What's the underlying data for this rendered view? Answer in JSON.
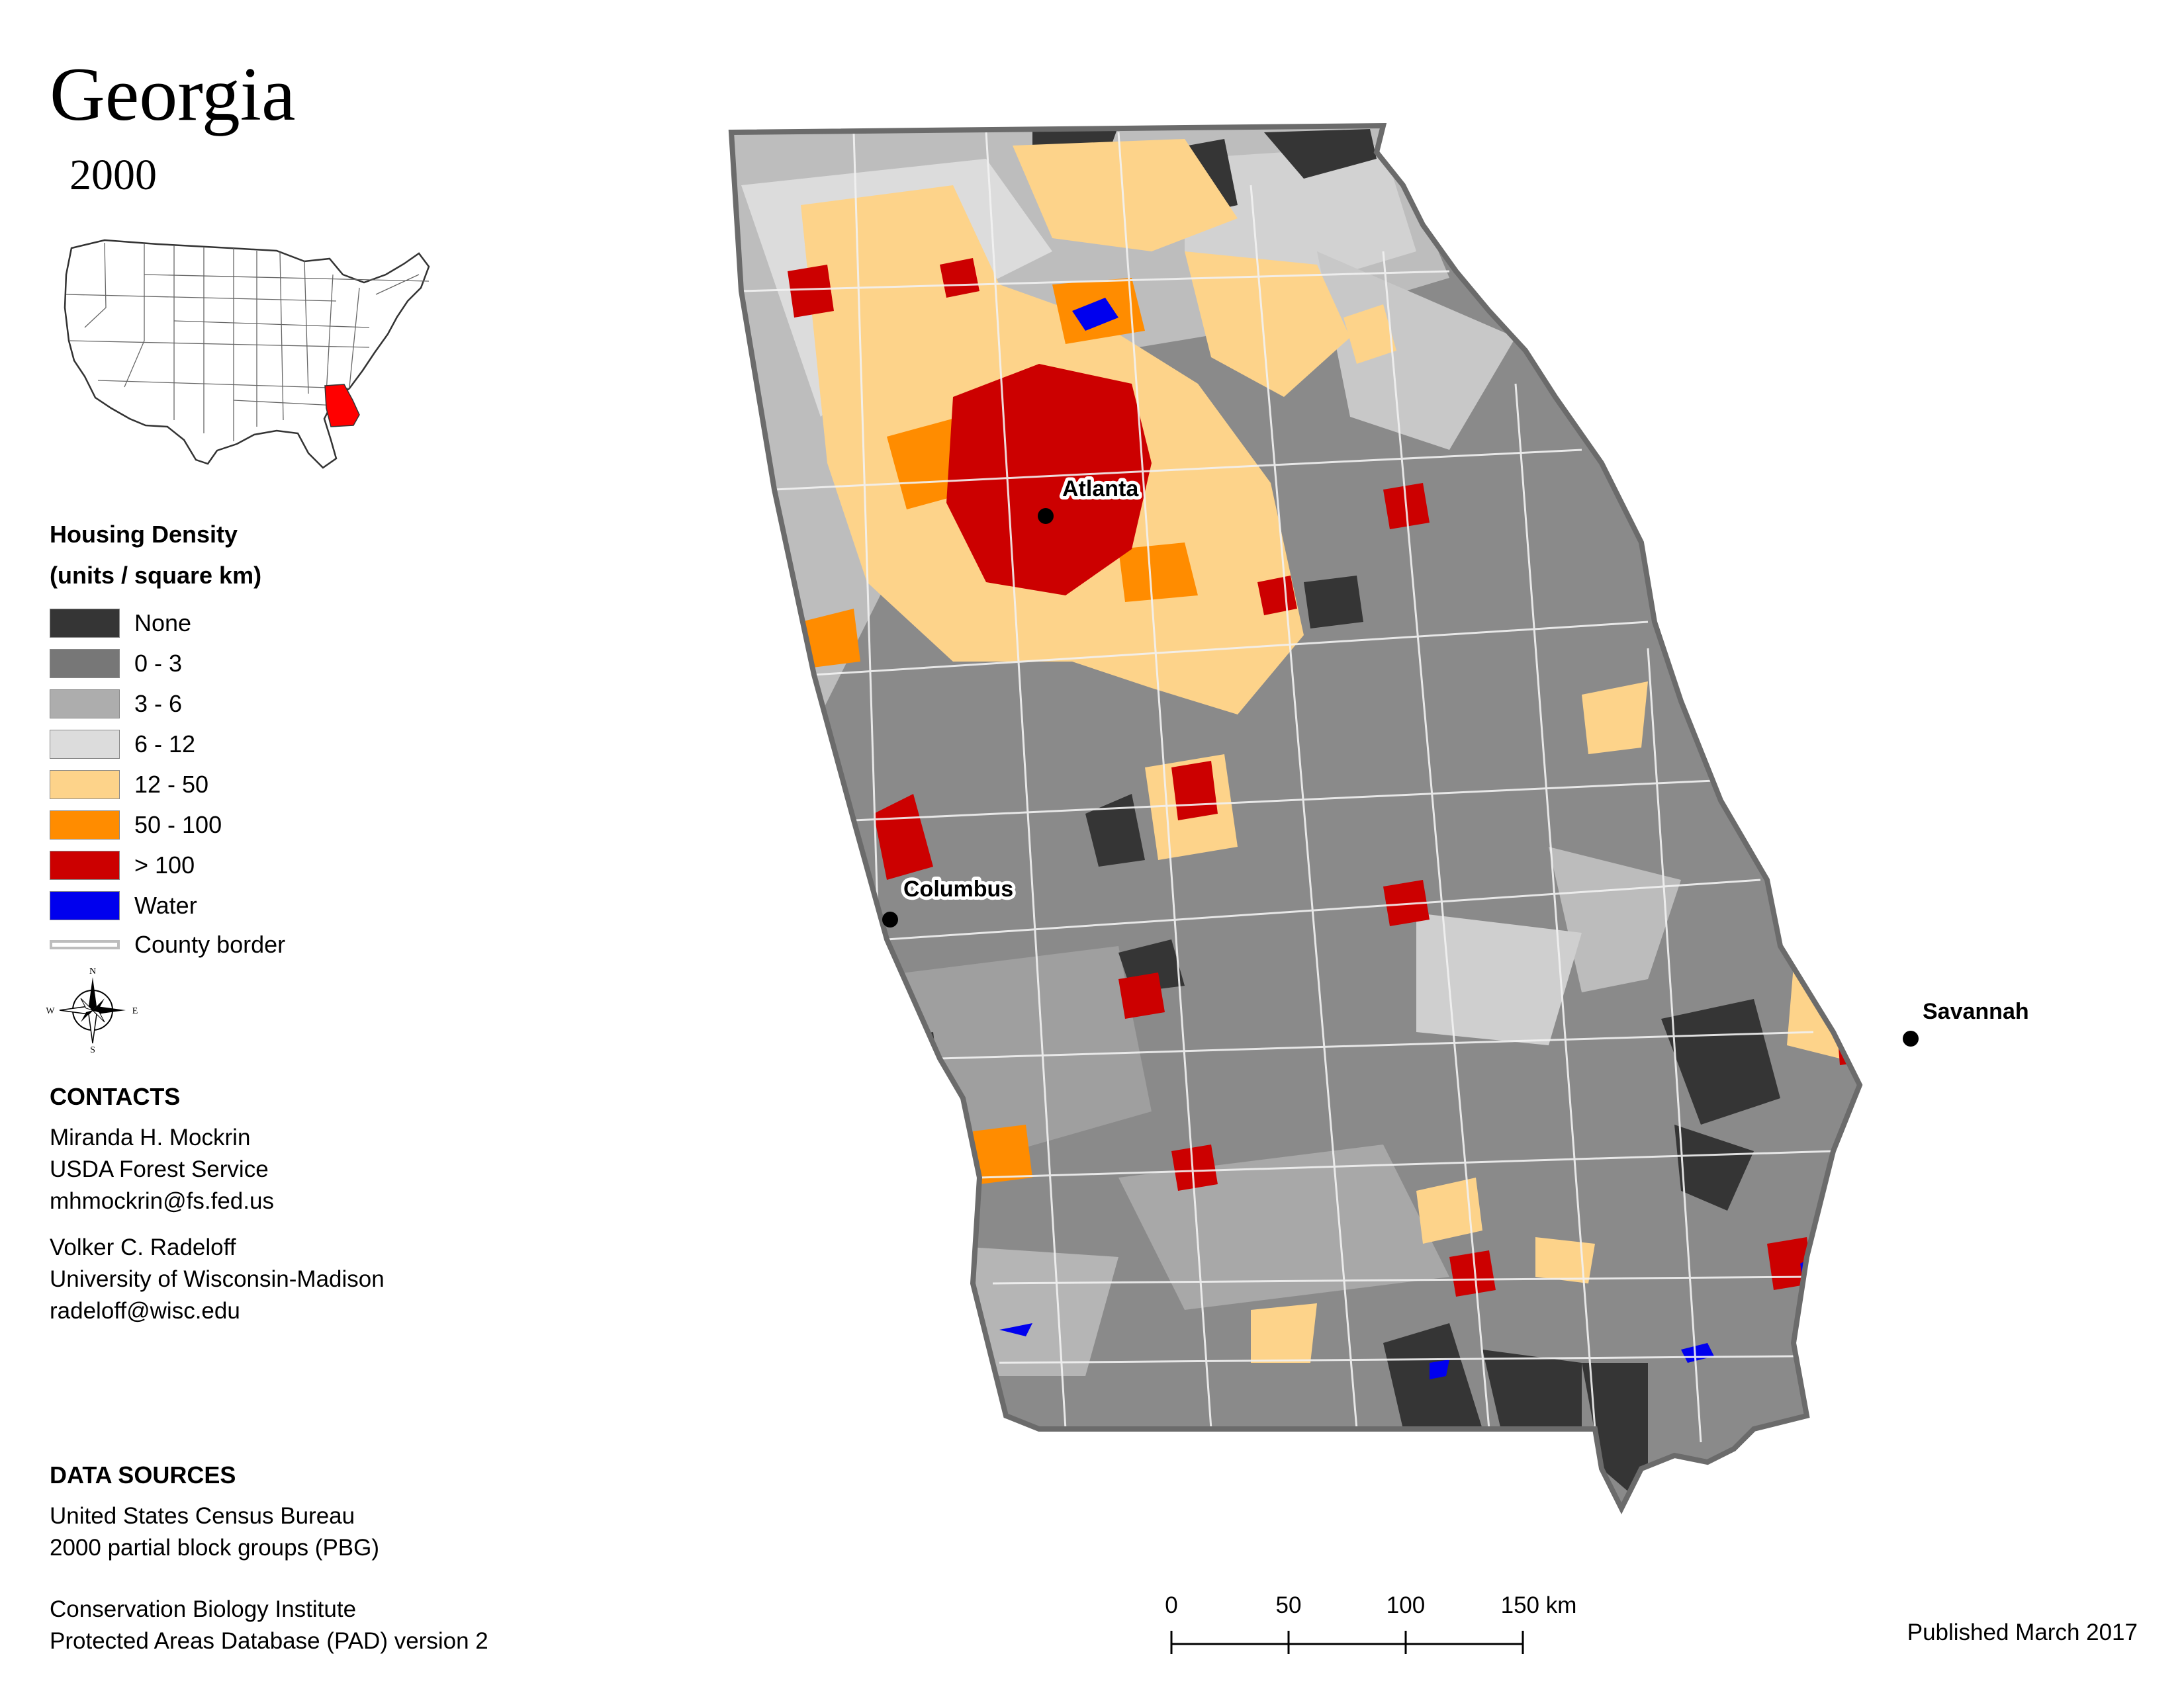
{
  "title": "Georgia",
  "year": "2000",
  "legend": {
    "title_line1": "Housing Density",
    "title_line2": "(units / square km)",
    "items": [
      {
        "label": "None",
        "color": "#353535"
      },
      {
        "label": "0 - 3",
        "color": "#777777"
      },
      {
        "label": "3 - 6",
        "color": "#adadad"
      },
      {
        "label": "6 - 12",
        "color": "#dcdcdc"
      },
      {
        "label": "12 - 50",
        "color": "#fdd38a"
      },
      {
        "label": "50 - 100",
        "color": "#ff8c00"
      },
      {
        "label": "> 100",
        "color": "#cc0000"
      },
      {
        "label": "Water",
        "color": "#0000ee"
      }
    ],
    "county_border_label": "County border"
  },
  "compass": {
    "n": "N",
    "s": "S",
    "e": "E",
    "w": "W"
  },
  "contacts": {
    "heading": "CONTACTS",
    "person1": {
      "name": "Miranda H. Mockrin",
      "org": "USDA Forest Service",
      "email": "mhmockrin@fs.fed.us"
    },
    "person2": {
      "name": "Volker C. Radeloff",
      "org": "University of Wisconsin-Madison",
      "email": "radeloff@wisc.edu"
    }
  },
  "data_sources": {
    "heading": "DATA SOURCES",
    "line1": "United States Census Bureau",
    "line2": "2000 partial block groups (PBG)",
    "line3": "Conservation Biology Institute",
    "line4": "Protected Areas Database (PAD) version 2"
  },
  "cities": [
    "Atlanta",
    "Columbus",
    "Savannah"
  ],
  "scale": {
    "ticks": [
      "0",
      "50",
      "100",
      "150 km"
    ]
  },
  "published": "Published March 2017"
}
